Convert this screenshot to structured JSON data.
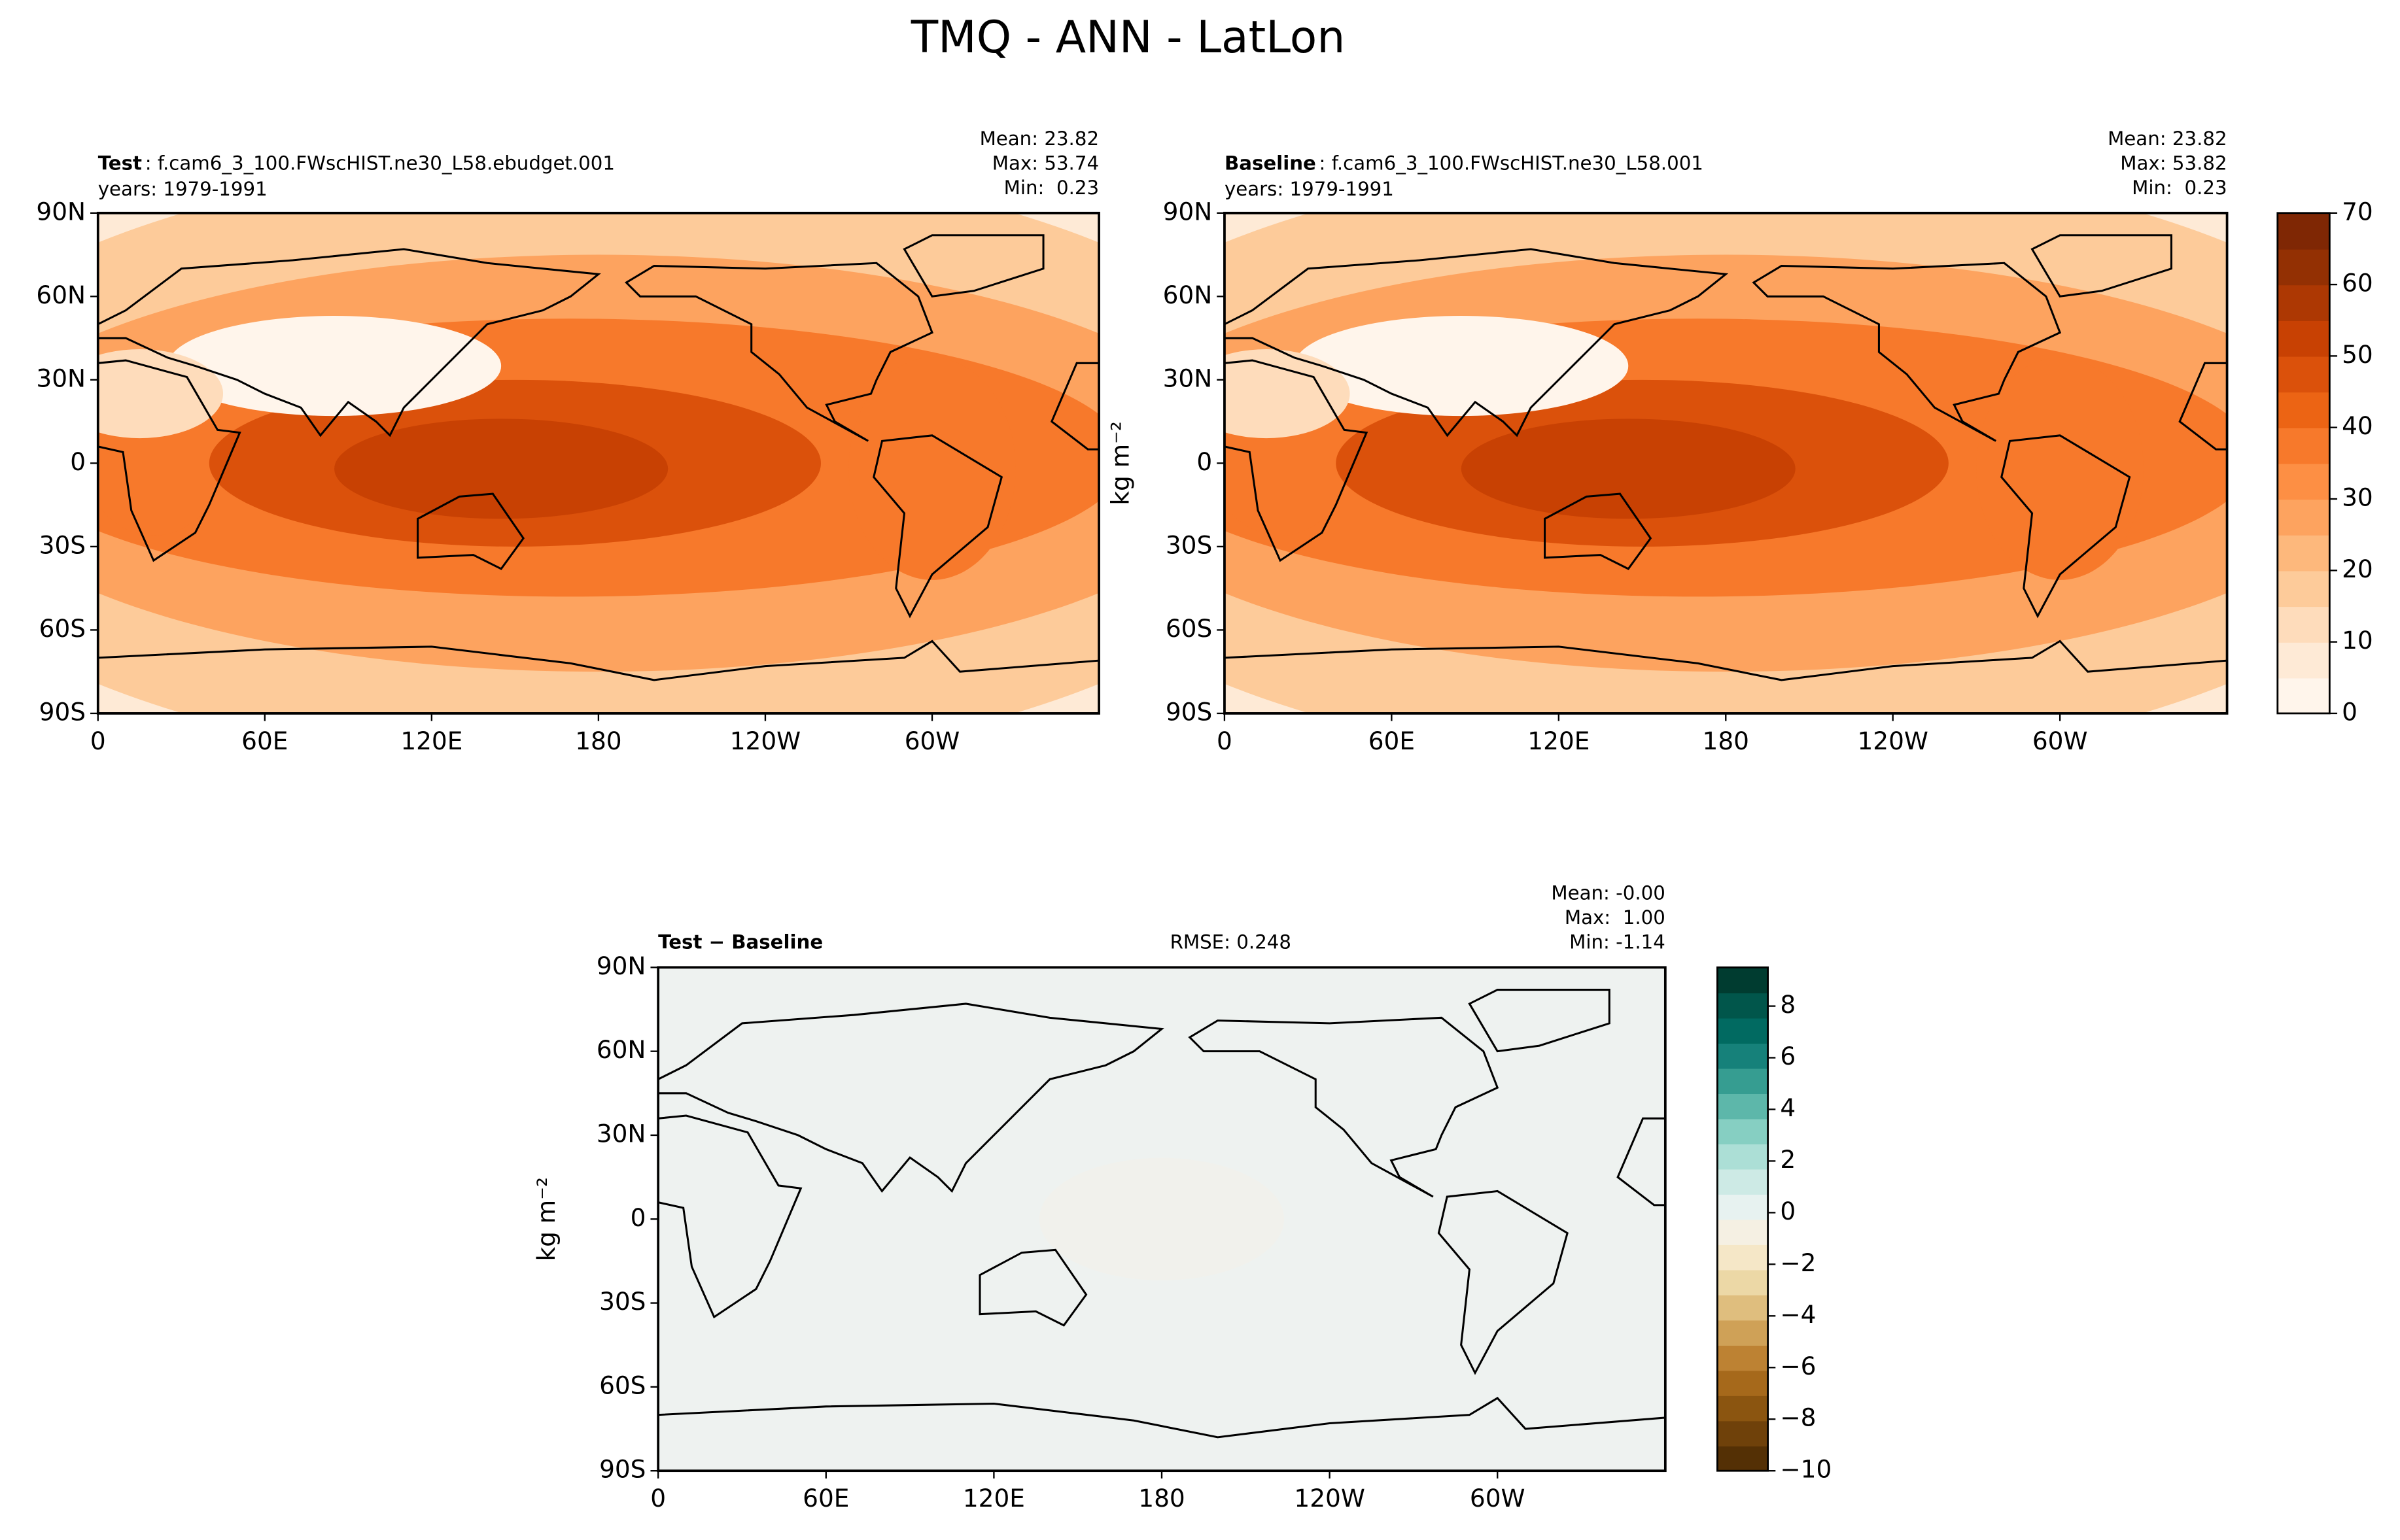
{
  "title": "TMQ - ANN - LatLon",
  "chart_data": [
    {
      "type": "map",
      "title": "Test",
      "subtitle": ": f.cam6_3_100.FWscHIST.ne30_L58.ebudget.001",
      "years": "years: 1979-1991",
      "stats": [
        "Mean: 23.82",
        "Max: 53.74",
        "Min:  0.23"
      ],
      "xlim": [
        0,
        360
      ],
      "ylim": [
        -90,
        90
      ],
      "xticks": [
        0,
        {
          "value": 60,
          "label": "60E"
        },
        {
          "value": 120,
          "label": "120E"
        },
        180,
        {
          "value": 240,
          "label": "120W"
        },
        {
          "value": 300,
          "label": "60W"
        }
      ],
      "yticks": [
        {
          "value": -90,
          "label": "90S"
        },
        {
          "value": -60,
          "label": "60S"
        },
        {
          "value": -30,
          "label": "30S"
        },
        0,
        {
          "value": 30,
          "label": "30N"
        },
        {
          "value": 60,
          "label": "60N"
        },
        {
          "value": 90,
          "label": "90N"
        }
      ]
    },
    {
      "type": "map",
      "title": "Baseline",
      "subtitle": ": f.cam6_3_100.FWscHIST.ne30_L58.001",
      "years": "years: 1979-1991",
      "stats": [
        "Mean: 23.82",
        "Max: 53.82",
        "Min:  0.23"
      ],
      "units": "kg m⁻²",
      "xlim": [
        0,
        360
      ],
      "ylim": [
        -90,
        90
      ],
      "xticks": [
        0,
        {
          "value": 60,
          "label": "60E"
        },
        {
          "value": 120,
          "label": "120E"
        },
        180,
        {
          "value": 240,
          "label": "120W"
        },
        {
          "value": 300,
          "label": "60W"
        }
      ],
      "yticks": [
        {
          "value": -90,
          "label": "90S"
        },
        {
          "value": -60,
          "label": "60S"
        },
        {
          "value": -30,
          "label": "30S"
        },
        0,
        {
          "value": 30,
          "label": "30N"
        },
        {
          "value": 60,
          "label": "60N"
        },
        {
          "value": 90,
          "label": "90N"
        }
      ],
      "colorbar": {
        "lim": [
          0,
          70
        ],
        "ticks": [
          0,
          10,
          20,
          30,
          40,
          50,
          60,
          70
        ],
        "colors": [
          "#fff5eb",
          "#feead6",
          "#fedcbb",
          "#fdcb9a",
          "#fdb87c",
          "#fda35f",
          "#fd8f44",
          "#f7792b",
          "#ec6414",
          "#db510b",
          "#c84103",
          "#ad3803",
          "#933003",
          "#7f2704"
        ]
      }
    },
    {
      "type": "map",
      "title": "Test − Baseline",
      "rmse": "RMSE: 0.248",
      "stats": [
        "Mean: -0.00",
        "Max:  1.00",
        "Min: -1.14"
      ],
      "units": "kg m⁻²",
      "xlim": [
        0,
        360
      ],
      "ylim": [
        -90,
        90
      ],
      "xticks": [
        0,
        {
          "value": 60,
          "label": "60E"
        },
        {
          "value": 120,
          "label": "120E"
        },
        180,
        {
          "value": 240,
          "label": "120W"
        },
        {
          "value": 300,
          "label": "60W"
        }
      ],
      "yticks": [
        {
          "value": -90,
          "label": "90S"
        },
        {
          "value": -60,
          "label": "60S"
        },
        {
          "value": -30,
          "label": "30S"
        },
        0,
        {
          "value": 30,
          "label": "30N"
        },
        {
          "value": 60,
          "label": "60N"
        },
        {
          "value": 90,
          "label": "90N"
        }
      ],
      "colorbar": {
        "lim": [
          -10,
          9.5
        ],
        "ticks": [
          {
            "value": -10,
            "label": "−10"
          },
          {
            "value": -8,
            "label": "−8"
          },
          {
            "value": -6,
            "label": "−6"
          },
          {
            "value": -4,
            "label": "−4"
          },
          {
            "value": -2,
            "label": "−2"
          },
          0,
          2,
          4,
          6,
          8
        ],
        "colors": [
          "#543005",
          "#6f410a",
          "#8b5510",
          "#a6691b",
          "#bd8233",
          "#cfa157",
          "#dfbe7e",
          "#ecd8a6",
          "#f5e7c7",
          "#f5f0e3",
          "#e7f2f0",
          "#cdeae5",
          "#acdfd6",
          "#86cfc2",
          "#5db7aa",
          "#369d91",
          "#16817a",
          "#016a61",
          "#01564b",
          "#003c30"
        ]
      }
    }
  ]
}
